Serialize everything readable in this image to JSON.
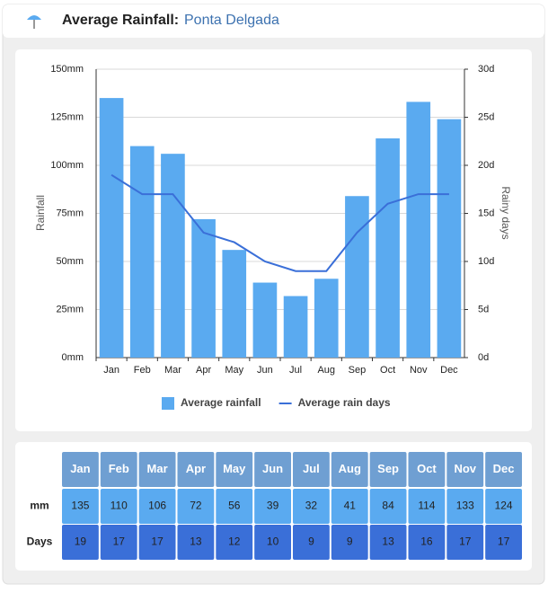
{
  "header": {
    "title": "Average Rainfall:",
    "location": "Ponta Delgada"
  },
  "chart_data": {
    "type": "bar",
    "categories": [
      "Jan",
      "Feb",
      "Mar",
      "Apr",
      "May",
      "Jun",
      "Jul",
      "Aug",
      "Sep",
      "Oct",
      "Nov",
      "Dec"
    ],
    "series": [
      {
        "name": "Average rainfall",
        "type": "bar",
        "color": "#5aaaf0",
        "values": [
          135,
          110,
          106,
          72,
          56,
          39,
          32,
          41,
          84,
          114,
          133,
          124
        ]
      },
      {
        "name": "Average rain days",
        "type": "line",
        "axis": "y2",
        "color": "#3a6fd8",
        "values": [
          19,
          17,
          17,
          13,
          12,
          10,
          9,
          9,
          13,
          16,
          17,
          17
        ]
      }
    ],
    "y_label": "Rainfall",
    "y2_label": "Rainy days",
    "ylim": [
      0,
      150
    ],
    "yticks": [
      {
        "value": 0,
        "label": "0mm"
      },
      {
        "value": 25,
        "label": "25mm"
      },
      {
        "value": 50,
        "label": "50mm"
      },
      {
        "value": 75,
        "label": "75mm"
      },
      {
        "value": 100,
        "label": "100mm"
      },
      {
        "value": 125,
        "label": "125mm"
      },
      {
        "value": 150,
        "label": "150mm"
      }
    ],
    "y2lim": [
      0,
      30
    ],
    "y2ticks": [
      {
        "value": 0,
        "label": "0d"
      },
      {
        "value": 5,
        "label": "5d"
      },
      {
        "value": 10,
        "label": "10d"
      },
      {
        "value": 15,
        "label": "15d"
      },
      {
        "value": 20,
        "label": "20d"
      },
      {
        "value": 25,
        "label": "25d"
      },
      {
        "value": 30,
        "label": "30d"
      }
    ],
    "grid": true,
    "legend": "bottom"
  },
  "table": {
    "row_labels": [
      "mm",
      "Days"
    ],
    "header_color": "#6f9fd2"
  }
}
